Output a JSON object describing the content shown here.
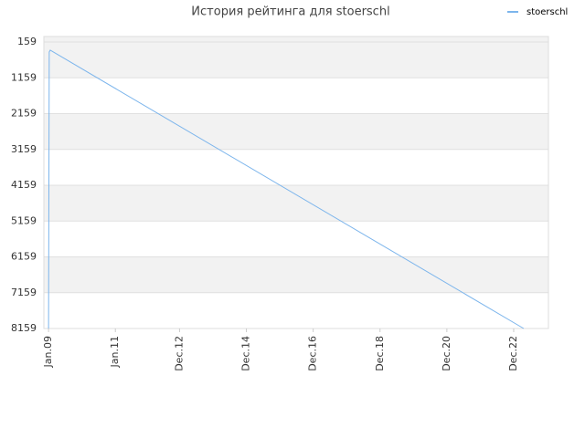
{
  "chart_data": {
    "type": "line",
    "title": "История рейтинга для stoerschl",
    "x": [
      2009.0,
      2009.02,
      2009.05,
      2023.22
    ],
    "series": [
      {
        "name": "stoerschl",
        "color": "#7cb5ec",
        "values": [
          8159,
          439,
          388,
          8159
        ]
      }
    ],
    "xlim": [
      2008.86,
      2023.96
    ],
    "xticks": [
      {
        "value": 2009.0,
        "label": "Jan.09"
      },
      {
        "value": 2011.0,
        "label": "Jan.11"
      },
      {
        "value": 2012.92,
        "label": "Dec.12"
      },
      {
        "value": 2014.92,
        "label": "Dec.14"
      },
      {
        "value": 2016.92,
        "label": "Dec.16"
      },
      {
        "value": 2018.92,
        "label": "Dec.18"
      },
      {
        "value": 2020.92,
        "label": "Dec.20"
      },
      {
        "value": 2022.92,
        "label": "Dec.22"
      }
    ],
    "ylim": [
      6,
      8159
    ],
    "y_reversed": true,
    "yticks": [
      159,
      1159,
      2159,
      3159,
      4159,
      5159,
      6159,
      7159,
      8159
    ],
    "grid": true,
    "band_color": "#f2f2f2",
    "legend": "top-right"
  }
}
